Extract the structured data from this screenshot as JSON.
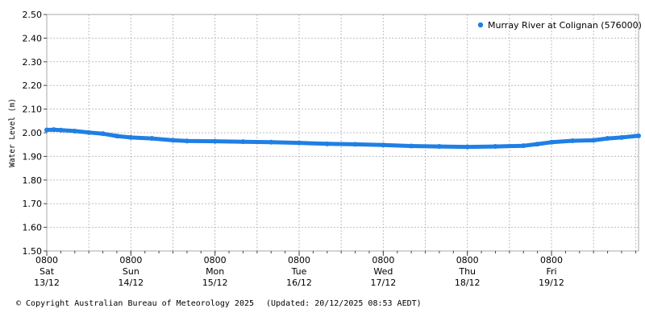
{
  "chart_data": {
    "type": "scatter",
    "ylabel": "Water Level (m)",
    "ylim": [
      1.5,
      2.5
    ],
    "yticks": [
      "1.50",
      "1.60",
      "1.70",
      "1.80",
      "1.90",
      "2.00",
      "2.10",
      "2.20",
      "2.30",
      "2.40",
      "2.50"
    ],
    "x_range": [
      "2025-12-13 08:00",
      "2025-12-20 08:50"
    ],
    "xticks": [
      {
        "time": "0800",
        "day": "Sat",
        "date": "13/12"
      },
      {
        "time": "0800",
        "day": "Sun",
        "date": "14/12"
      },
      {
        "time": "0800",
        "day": "Mon",
        "date": "15/12"
      },
      {
        "time": "0800",
        "day": "Tue",
        "date": "16/12"
      },
      {
        "time": "0800",
        "day": "Wed",
        "date": "17/12"
      },
      {
        "time": "0800",
        "day": "Thu",
        "date": "18/12"
      },
      {
        "time": "0800",
        "day": "Fri",
        "date": "19/12"
      }
    ],
    "grid": true,
    "legend_position": "top-right",
    "series": [
      {
        "name": "Murray River at Colignan (576000)",
        "color": "#1f7fe5",
        "points": [
          [
            "2025-12-13 08:00",
            2.012
          ],
          [
            "2025-12-13 10:00",
            2.013
          ],
          [
            "2025-12-13 12:00",
            2.011
          ],
          [
            "2025-12-13 16:00",
            2.007
          ],
          [
            "2025-12-13 20:00",
            2.001
          ],
          [
            "2025-12-14 00:00",
            1.996
          ],
          [
            "2025-12-14 04:00",
            1.986
          ],
          [
            "2025-12-14 08:00",
            1.98
          ],
          [
            "2025-12-14 14:00",
            1.976
          ],
          [
            "2025-12-14 20:00",
            1.968
          ],
          [
            "2025-12-15 00:00",
            1.965
          ],
          [
            "2025-12-15 08:00",
            1.964
          ],
          [
            "2025-12-15 16:00",
            1.962
          ],
          [
            "2025-12-16 00:00",
            1.96
          ],
          [
            "2025-12-16 08:00",
            1.957
          ],
          [
            "2025-12-16 16:00",
            1.953
          ],
          [
            "2025-12-17 00:00",
            1.951
          ],
          [
            "2025-12-17 08:00",
            1.948
          ],
          [
            "2025-12-17 16:00",
            1.944
          ],
          [
            "2025-12-18 00:00",
            1.942
          ],
          [
            "2025-12-18 08:00",
            1.94
          ],
          [
            "2025-12-18 16:00",
            1.942
          ],
          [
            "2025-12-19 00:00",
            1.945
          ],
          [
            "2025-12-19 04:00",
            1.952
          ],
          [
            "2025-12-19 08:00",
            1.96
          ],
          [
            "2025-12-19 14:00",
            1.966
          ],
          [
            "2025-12-19 20:00",
            1.968
          ],
          [
            "2025-12-20 00:00",
            1.976
          ],
          [
            "2025-12-20 04:00",
            1.98
          ],
          [
            "2025-12-20 08:50",
            1.987
          ]
        ]
      }
    ]
  },
  "footer": {
    "copyright": "© Copyright Australian Bureau of Meteorology 2025",
    "updated": "(Updated: 20/12/2025 08:53 AEDT)"
  }
}
